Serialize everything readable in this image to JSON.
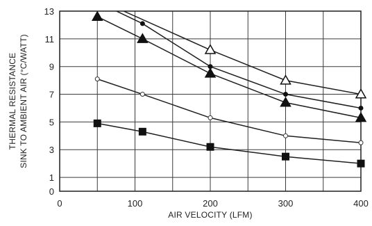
{
  "chart_data": {
    "type": "line",
    "title": "",
    "xlabel": "AIR VELOCITY (LFM)",
    "ylabel_lines": [
      "THERMAL RESISTANCE",
      "SINK TO AMBIENT AIR (°C/WATT)"
    ],
    "xlim": [
      0,
      400
    ],
    "ylim": [
      0,
      13
    ],
    "x_ticks": [
      0,
      100,
      200,
      300,
      400
    ],
    "y_ticks": [
      0,
      1,
      3,
      5,
      7,
      9,
      11,
      13
    ],
    "x_grid": [
      0,
      50,
      100,
      150,
      200,
      250,
      300,
      350,
      400
    ],
    "y_grid": [
      0,
      1,
      3,
      5,
      7,
      9,
      11,
      13
    ],
    "grid": true,
    "legend": "none",
    "series": [
      {
        "marker": "open-triangle",
        "points": [
          [
            85,
            13
          ],
          [
            200,
            10.2
          ],
          [
            300,
            8.0
          ],
          [
            400,
            7.0
          ]
        ]
      },
      {
        "marker": "small-filled-circle",
        "points": [
          [
            60,
            13.4
          ],
          [
            110,
            12.1
          ],
          [
            200,
            9.0
          ],
          [
            300,
            7.0
          ],
          [
            400,
            6.0
          ]
        ]
      },
      {
        "marker": "filled-triangle",
        "points": [
          [
            50,
            12.6
          ],
          [
            110,
            11.0
          ],
          [
            200,
            8.5
          ],
          [
            300,
            6.4
          ],
          [
            400,
            5.3
          ]
        ]
      },
      {
        "marker": "small-open-circle",
        "points": [
          [
            50,
            8.1
          ],
          [
            110,
            7.0
          ],
          [
            200,
            5.3
          ],
          [
            300,
            4.0
          ],
          [
            400,
            3.5
          ]
        ]
      },
      {
        "marker": "filled-square",
        "points": [
          [
            50,
            4.9
          ],
          [
            110,
            4.3
          ],
          [
            200,
            3.2
          ],
          [
            300,
            2.5
          ],
          [
            400,
            2.0
          ]
        ]
      }
    ]
  }
}
